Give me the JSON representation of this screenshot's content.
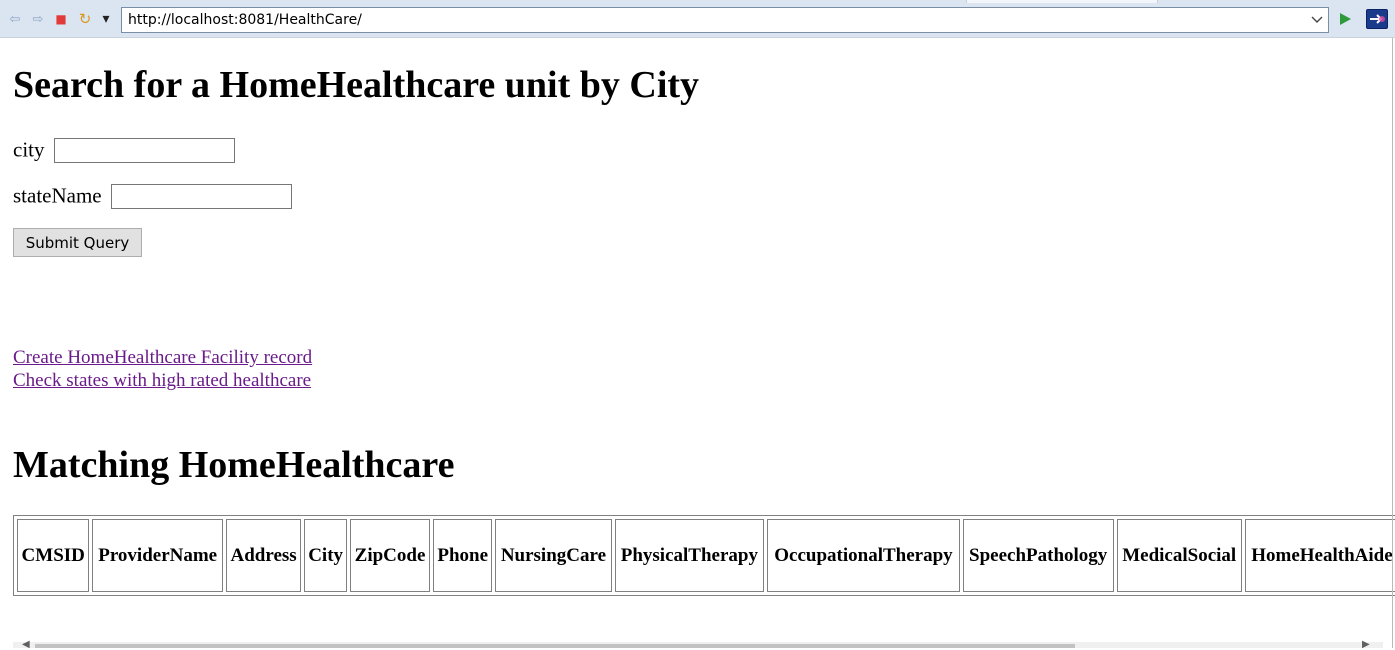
{
  "browser": {
    "url": "http://localhost:8081/HealthCare/",
    "back_glyph": "⇦",
    "forward_glyph": "⇨",
    "stop_glyph": "■",
    "refresh_glyph": "↻",
    "menu_glyph": "▾",
    "dropdown_glyph": "⌄",
    "go_glyph": "▶",
    "colors": {
      "toolbar_bg": "#dbe5f1",
      "stop": "#e03a3a",
      "go": "#2e9a3b",
      "arrows": "#8fa7c4"
    }
  },
  "search": {
    "heading": "Search for a HomeHealthcare unit by City",
    "city_label": "city",
    "city_value": "",
    "state_label": "stateName",
    "state_value": "",
    "submit_label": "Submit Query"
  },
  "links": [
    "Create HomeHealthcare Facility record",
    "Check states with high rated healthcare"
  ],
  "results": {
    "heading": "Matching HomeHealthcare",
    "columns": [
      "CMSID",
      "ProviderName",
      "Address",
      "City",
      "ZipCode",
      "Phone",
      "NursingCare",
      "PhysicalTherapy",
      "OccupationalTherapy",
      "SpeechPathology",
      "MedicalSocial",
      "HomeHealthAide"
    ]
  },
  "scrollbar": {
    "left_arrow": "◀",
    "right_arrow": "▶"
  }
}
